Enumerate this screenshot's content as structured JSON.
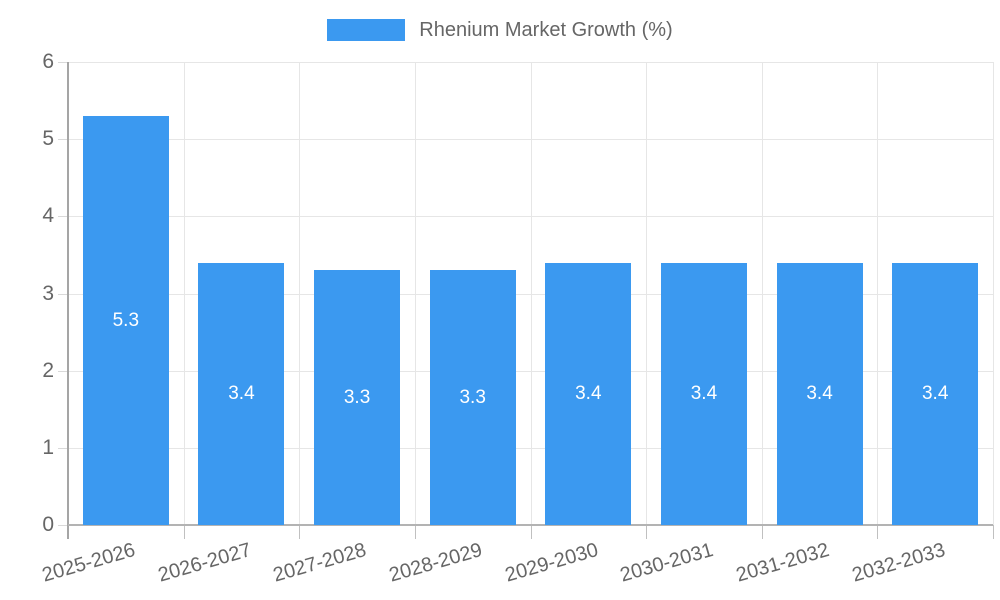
{
  "legend": {
    "label": "Rhenium Market Growth (%)"
  },
  "chart_data": {
    "type": "bar",
    "title": "Rhenium Market Growth (%)",
    "categories": [
      "2025-2026",
      "2026-2027",
      "2027-2028",
      "2028-2029",
      "2029-2030",
      "2030-2031",
      "2031-2032",
      "2032-2033"
    ],
    "values": [
      5.3,
      3.4,
      3.3,
      3.3,
      3.4,
      3.4,
      3.4,
      3.4
    ],
    "value_labels": [
      "5.3",
      "3.4",
      "3.3",
      "3.3",
      "3.4",
      "3.4",
      "3.4",
      "3.4"
    ],
    "xlabel": "",
    "ylabel": "",
    "ylim": [
      0,
      6
    ],
    "yticks": [
      0,
      1,
      2,
      3,
      4,
      5,
      6
    ],
    "grid": true,
    "legend_position": "top",
    "colors": {
      "bar": "#3b99f0",
      "bar_label": "#ffffff",
      "text": "#666666",
      "gridline": "#e6e6e6",
      "axis": "#a5a5a5"
    }
  }
}
